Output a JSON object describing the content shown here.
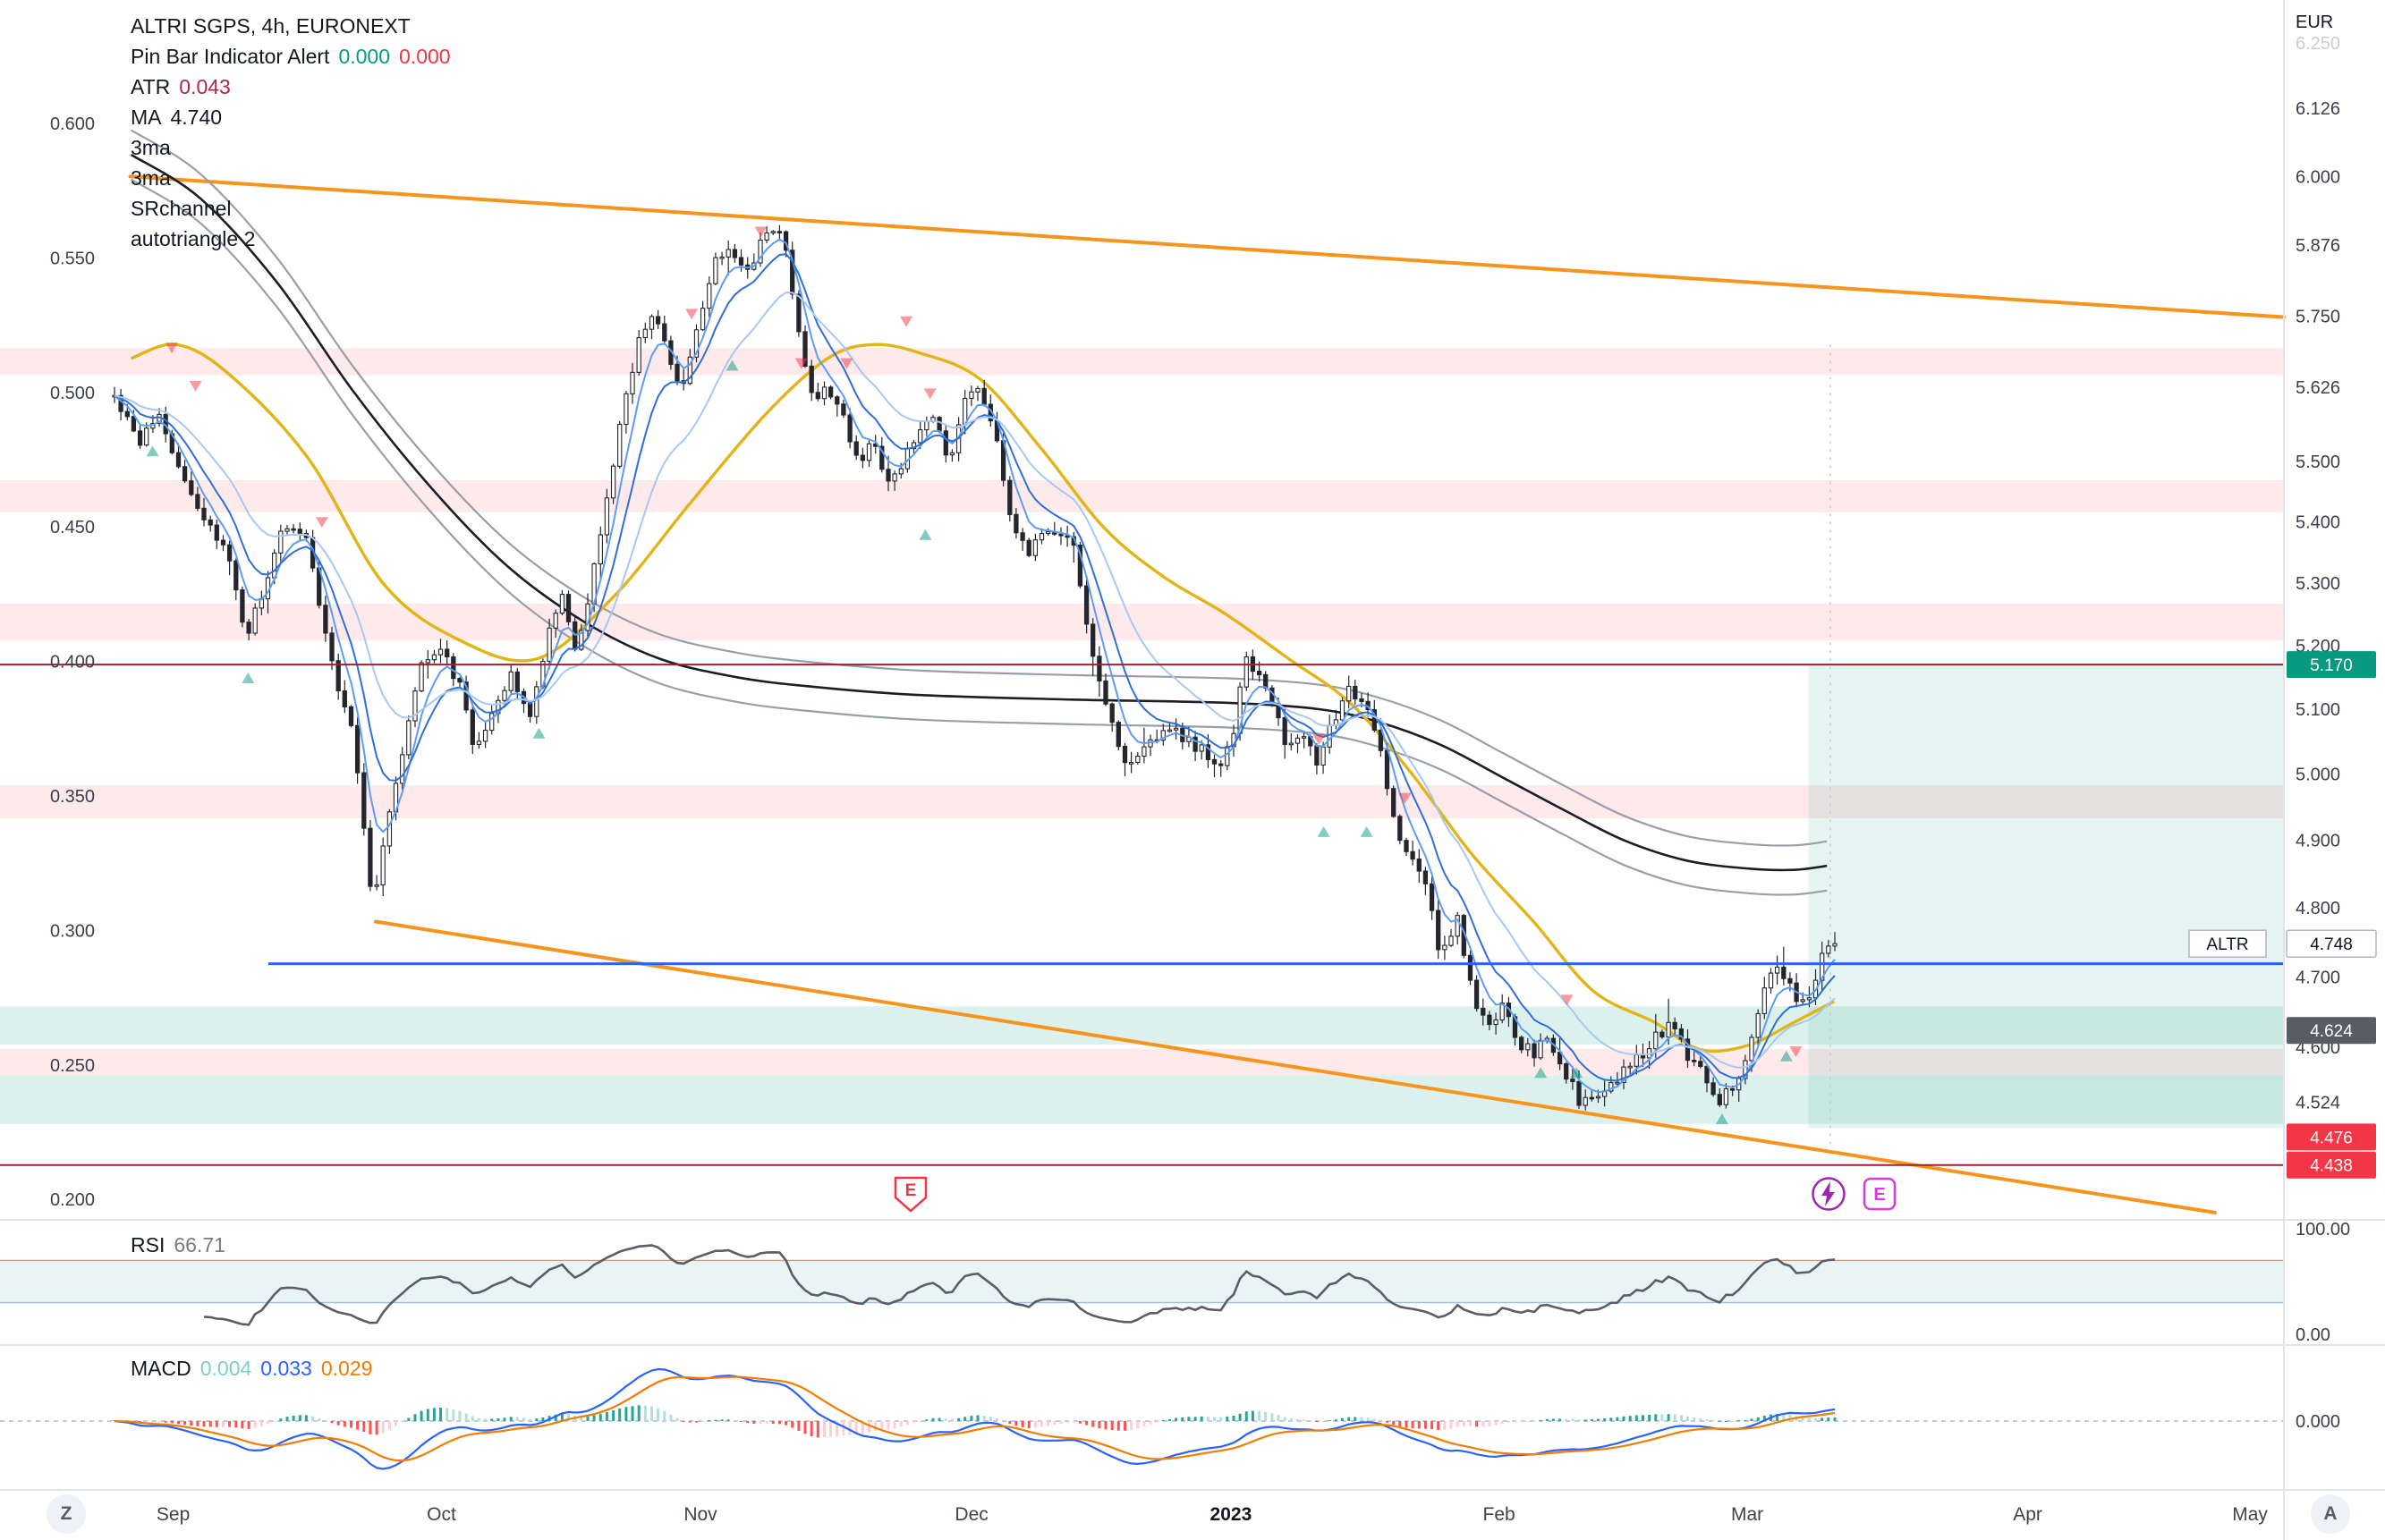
{
  "header": {
    "symbol": "ALTRI SGPS, 4h, EURONEXT",
    "pinbar": {
      "label": "Pin Bar Indicator Alert",
      "value1": "0.000",
      "value2": "0.000"
    },
    "atr": {
      "label": "ATR",
      "value": "0.043"
    },
    "ma": {
      "label": "MA",
      "value": "4.740"
    },
    "overlays": [
      "3ma",
      "3ma",
      "SRchannel",
      "autotriangle 2"
    ]
  },
  "currency_label": "EUR",
  "panes": {
    "rsi": {
      "label": "RSI",
      "value": "66.71",
      "axis_top": "100.00",
      "axis_bottom": "0.00"
    },
    "macd": {
      "label": "MACD",
      "hist": "0.004",
      "macd": "0.033",
      "signal": "0.029",
      "axis_zero": "0.000"
    }
  },
  "price_axis": {
    "faded_top": "6.250",
    "ticks": [
      "6.126",
      "6.000",
      "5.876",
      "5.750",
      "5.626",
      "5.500",
      "5.400",
      "5.300",
      "5.200",
      "5.100",
      "5.000",
      "4.900",
      "4.800",
      "4.700",
      "4.600",
      "4.524"
    ],
    "badges": [
      {
        "value": "5.170",
        "price": 5.17,
        "bg": "#089981",
        "fg": "#ffffff"
      },
      {
        "value": "4.748",
        "price": 4.748,
        "bg": "#ffffff",
        "fg": "#131722",
        "border": "#b2b5be",
        "label_left": "ALTR"
      },
      {
        "value": "4.624",
        "price": 4.624,
        "bg": "#575d66",
        "fg": "#ffffff"
      },
      {
        "value": "4.476",
        "price": 4.476,
        "bg": "#f23645",
        "fg": "#ffffff"
      },
      {
        "value": "4.438",
        "price": 4.438,
        "bg": "#f23645",
        "fg": "#ffffff"
      }
    ]
  },
  "left_axis": {
    "ticks": [
      "0.600",
      "0.550",
      "0.500",
      "0.450",
      "0.400",
      "0.350",
      "0.300",
      "0.250",
      "0.200"
    ]
  },
  "time_axis": {
    "labels": [
      {
        "t": "Sep",
        "f": 0.0726
      },
      {
        "t": "Oct",
        "f": 0.1851
      },
      {
        "t": "Nov",
        "f": 0.2937
      },
      {
        "t": "Dec",
        "f": 0.4074
      },
      {
        "t": "2023",
        "f": 0.5161,
        "bold": true
      },
      {
        "t": "Feb",
        "f": 0.6285
      },
      {
        "t": "Mar",
        "f": 0.7326
      },
      {
        "t": "Apr",
        "f": 0.8502
      },
      {
        "t": "May",
        "f": 0.9434
      }
    ]
  },
  "corner_buttons": {
    "left": "Z",
    "right": "A"
  },
  "icons": {
    "shield_letter": "E",
    "badge_letter": "E"
  },
  "colors": {
    "up_candle": "#ffffff",
    "down_candle": "#23262d",
    "candle_border": "#23262d",
    "yellow_ma": "#e3b416",
    "channel_center": "#1b1e26",
    "channel_outer": "#999ea8",
    "trendline_orange": "#f7941d",
    "support_blue": "#2962ff",
    "resistance_red": "#a61d2d",
    "zone_pink": "rgba(242,54,69,0.11)",
    "zone_green": "rgba(8,153,129,0.14)",
    "zone_projection": "rgba(8,153,129,0.10)",
    "marker_down": "rgba(242,54,69,0.50)",
    "marker_up": "rgba(8,153,129,0.50)",
    "rsi_line": "#5b5e69",
    "rsi_band_fill": "rgba(42,150,143,0.10)",
    "rsi_upper_line": "#cf9a82",
    "rsi_lower_line": "#9fc0de",
    "macd_line": "#2962ff",
    "signal_line": "#f57c00",
    "hist_up": "#26a69a",
    "hist_up_weak": "#b2dfdb",
    "hist_dn": "#ff5252",
    "hist_dn_weak": "#ffcdd2",
    "separator": "#e0e3eb",
    "axis_text": "#3c404b"
  },
  "chart_data": {
    "type": "candlestick",
    "symbol": "ALTRI SGPS",
    "timeframe": "4h",
    "exchange": "EURONEXT",
    "scale": "log",
    "price_range_visible": [
      4.37,
      6.28
    ],
    "last_price": 4.748,
    "atr": 0.043,
    "bars": {
      "count": 270,
      "x_start": 0.048,
      "x_end": 0.7693,
      "seed": 42,
      "noise": 0.02
    },
    "price_path": [
      [
        0.048,
        5.61
      ],
      [
        0.058,
        5.533
      ],
      [
        0.067,
        5.58
      ],
      [
        0.077,
        5.462
      ],
      [
        0.087,
        5.402
      ],
      [
        0.096,
        5.337
      ],
      [
        0.103,
        5.208
      ],
      [
        0.109,
        5.277
      ],
      [
        0.119,
        5.389
      ],
      [
        0.129,
        5.377
      ],
      [
        0.138,
        5.183
      ],
      [
        0.148,
        5.06
      ],
      [
        0.156,
        4.8
      ],
      [
        0.162,
        4.915
      ],
      [
        0.17,
        5.06
      ],
      [
        0.177,
        5.179
      ],
      [
        0.185,
        5.203
      ],
      [
        0.193,
        5.131
      ],
      [
        0.199,
        5.037
      ],
      [
        0.207,
        5.089
      ],
      [
        0.214,
        5.153
      ],
      [
        0.222,
        5.084
      ],
      [
        0.229,
        5.208
      ],
      [
        0.236,
        5.277
      ],
      [
        0.242,
        5.179
      ],
      [
        0.249,
        5.326
      ],
      [
        0.255,
        5.452
      ],
      [
        0.262,
        5.605
      ],
      [
        0.268,
        5.71
      ],
      [
        0.274,
        5.764
      ],
      [
        0.281,
        5.662
      ],
      [
        0.287,
        5.631
      ],
      [
        0.294,
        5.764
      ],
      [
        0.3,
        5.845
      ],
      [
        0.307,
        5.872
      ],
      [
        0.313,
        5.818
      ],
      [
        0.319,
        5.883
      ],
      [
        0.328,
        5.905
      ],
      [
        0.334,
        5.737
      ],
      [
        0.341,
        5.605
      ],
      [
        0.347,
        5.631
      ],
      [
        0.353,
        5.58
      ],
      [
        0.36,
        5.502
      ],
      [
        0.366,
        5.528
      ],
      [
        0.373,
        5.452
      ],
      [
        0.379,
        5.502
      ],
      [
        0.386,
        5.554
      ],
      [
        0.392,
        5.58
      ],
      [
        0.398,
        5.502
      ],
      [
        0.405,
        5.605
      ],
      [
        0.411,
        5.631
      ],
      [
        0.418,
        5.528
      ],
      [
        0.424,
        5.402
      ],
      [
        0.431,
        5.352
      ],
      [
        0.437,
        5.377
      ],
      [
        0.443,
        5.389
      ],
      [
        0.45,
        5.377
      ],
      [
        0.454,
        5.257
      ],
      [
        0.46,
        5.147
      ],
      [
        0.466,
        5.077
      ],
      [
        0.472,
        5.013
      ],
      [
        0.479,
        5.037
      ],
      [
        0.485,
        5.06
      ],
      [
        0.492,
        5.072
      ],
      [
        0.498,
        5.048
      ],
      [
        0.505,
        5.037
      ],
      [
        0.511,
        5.013
      ],
      [
        0.517,
        5.06
      ],
      [
        0.522,
        5.188
      ],
      [
        0.527,
        5.154
      ],
      [
        0.533,
        5.108
      ],
      [
        0.54,
        5.037
      ],
      [
        0.546,
        5.06
      ],
      [
        0.553,
        5.013
      ],
      [
        0.559,
        5.084
      ],
      [
        0.566,
        5.131
      ],
      [
        0.572,
        5.108
      ],
      [
        0.578,
        5.06
      ],
      [
        0.585,
        4.911
      ],
      [
        0.591,
        4.876
      ],
      [
        0.598,
        4.831
      ],
      [
        0.604,
        4.719
      ],
      [
        0.611,
        4.786
      ],
      [
        0.617,
        4.676
      ],
      [
        0.623,
        4.633
      ],
      [
        0.63,
        4.654
      ],
      [
        0.636,
        4.611
      ],
      [
        0.643,
        4.59
      ],
      [
        0.649,
        4.611
      ],
      [
        0.656,
        4.568
      ],
      [
        0.662,
        4.525
      ],
      [
        0.668,
        4.536
      ],
      [
        0.675,
        4.546
      ],
      [
        0.681,
        4.568
      ],
      [
        0.688,
        4.59
      ],
      [
        0.694,
        4.611
      ],
      [
        0.701,
        4.633
      ],
      [
        0.707,
        4.59
      ],
      [
        0.713,
        4.568
      ],
      [
        0.72,
        4.525
      ],
      [
        0.726,
        4.546
      ],
      [
        0.733,
        4.59
      ],
      [
        0.739,
        4.676
      ],
      [
        0.746,
        4.719
      ],
      [
        0.752,
        4.676
      ],
      [
        0.758,
        4.654
      ],
      [
        0.764,
        4.742
      ],
      [
        0.769,
        4.748
      ]
    ],
    "yellow_ma_path": [
      [
        0.055,
        5.676
      ],
      [
        0.074,
        5.7
      ],
      [
        0.096,
        5.649
      ],
      [
        0.129,
        5.507
      ],
      [
        0.161,
        5.298
      ],
      [
        0.193,
        5.208
      ],
      [
        0.225,
        5.179
      ],
      [
        0.257,
        5.277
      ],
      [
        0.289,
        5.429
      ],
      [
        0.321,
        5.58
      ],
      [
        0.347,
        5.676
      ],
      [
        0.366,
        5.7
      ],
      [
        0.386,
        5.685
      ],
      [
        0.411,
        5.64
      ],
      [
        0.437,
        5.52
      ],
      [
        0.463,
        5.39
      ],
      [
        0.488,
        5.31
      ],
      [
        0.514,
        5.25
      ],
      [
        0.54,
        5.18
      ],
      [
        0.566,
        5.11
      ],
      [
        0.591,
        5.005
      ],
      [
        0.617,
        4.88
      ],
      [
        0.643,
        4.78
      ],
      [
        0.668,
        4.68
      ],
      [
        0.694,
        4.635
      ],
      [
        0.713,
        4.597
      ],
      [
        0.733,
        4.603
      ],
      [
        0.752,
        4.635
      ],
      [
        0.769,
        4.665
      ]
    ],
    "channel_center_path": [
      [
        0.055,
        6.04
      ],
      [
        0.084,
        5.96
      ],
      [
        0.116,
        5.81
      ],
      [
        0.148,
        5.62
      ],
      [
        0.18,
        5.46
      ],
      [
        0.212,
        5.33
      ],
      [
        0.244,
        5.24
      ],
      [
        0.276,
        5.18
      ],
      [
        0.309,
        5.15
      ],
      [
        0.341,
        5.135
      ],
      [
        0.386,
        5.122
      ],
      [
        0.45,
        5.115
      ],
      [
        0.514,
        5.11
      ],
      [
        0.553,
        5.1
      ],
      [
        0.578,
        5.08
      ],
      [
        0.604,
        5.045
      ],
      [
        0.63,
        4.995
      ],
      [
        0.656,
        4.945
      ],
      [
        0.681,
        4.9
      ],
      [
        0.707,
        4.87
      ],
      [
        0.733,
        4.858
      ],
      [
        0.752,
        4.856
      ],
      [
        0.766,
        4.862
      ]
    ],
    "channel_width_ratio": 0.0075,
    "moving_averages": {
      "fast_periods": [
        5,
        10,
        20
      ],
      "colors": [
        "#5d9cf5",
        "#2f6fd6",
        "#a9c7f5"
      ]
    },
    "trendlines": [
      {
        "x1": 0.0546,
        "p1": 6.0,
        "x2": 0.9576,
        "p2": 5.748,
        "width": 4
      },
      {
        "x1": 0.1575,
        "p1": 4.78,
        "x2": 0.9287,
        "p2": 4.374,
        "width": 4
      }
    ],
    "horizontal_lines": [
      {
        "price": 5.17,
        "x1": 0,
        "x2": 0.9576,
        "color": "#a61d2d",
        "width": 2
      },
      {
        "price": 4.438,
        "x1": 0,
        "x2": 0.9576,
        "color": "#a61d2d",
        "width": 2
      },
      {
        "price": 4.719,
        "x1": 0.1125,
        "x2": 0.9576,
        "color": "#2962ff",
        "width": 3
      }
    ],
    "zones_pink": [
      [
        5.647,
        5.694
      ],
      [
        5.416,
        5.469
      ],
      [
        5.208,
        5.267
      ],
      [
        4.933,
        4.983
      ],
      [
        4.561,
        4.598
      ]
    ],
    "zones_green": [
      [
        4.604,
        4.658
      ],
      [
        4.494,
        4.561
      ]
    ],
    "projection_zone": {
      "x1": 0.7583,
      "x2": 0.9576,
      "top": 5.17,
      "bottom": 4.488
    },
    "vline_x": 0.7674,
    "markers_down": [
      [
        0.072,
        5.694
      ],
      [
        0.082,
        5.628
      ],
      [
        0.135,
        5.399
      ],
      [
        0.29,
        5.753
      ],
      [
        0.319,
        5.899
      ],
      [
        0.336,
        5.667
      ],
      [
        0.355,
        5.667
      ],
      [
        0.38,
        5.74
      ],
      [
        0.39,
        5.615
      ],
      [
        0.553,
        5.053
      ],
      [
        0.589,
        4.963
      ],
      [
        0.657,
        4.667
      ],
      [
        0.753,
        4.594
      ]
    ],
    "markers_up": [
      [
        0.064,
        5.518
      ],
      [
        0.104,
        5.149
      ],
      [
        0.226,
        5.063
      ],
      [
        0.307,
        5.664
      ],
      [
        0.388,
        5.379
      ],
      [
        0.555,
        4.913
      ],
      [
        0.573,
        4.913
      ],
      [
        0.646,
        4.565
      ],
      [
        0.661,
        4.565
      ],
      [
        0.722,
        4.501
      ],
      [
        0.749,
        4.588
      ]
    ],
    "rsi": {
      "period": 14,
      "value": 66.71,
      "upper": 70,
      "lower": 30
    },
    "macd": {
      "fast": 12,
      "slow": 26,
      "signal": 9,
      "hist_value": 0.004,
      "macd_value": 0.033,
      "signal_value": 0.029
    }
  }
}
